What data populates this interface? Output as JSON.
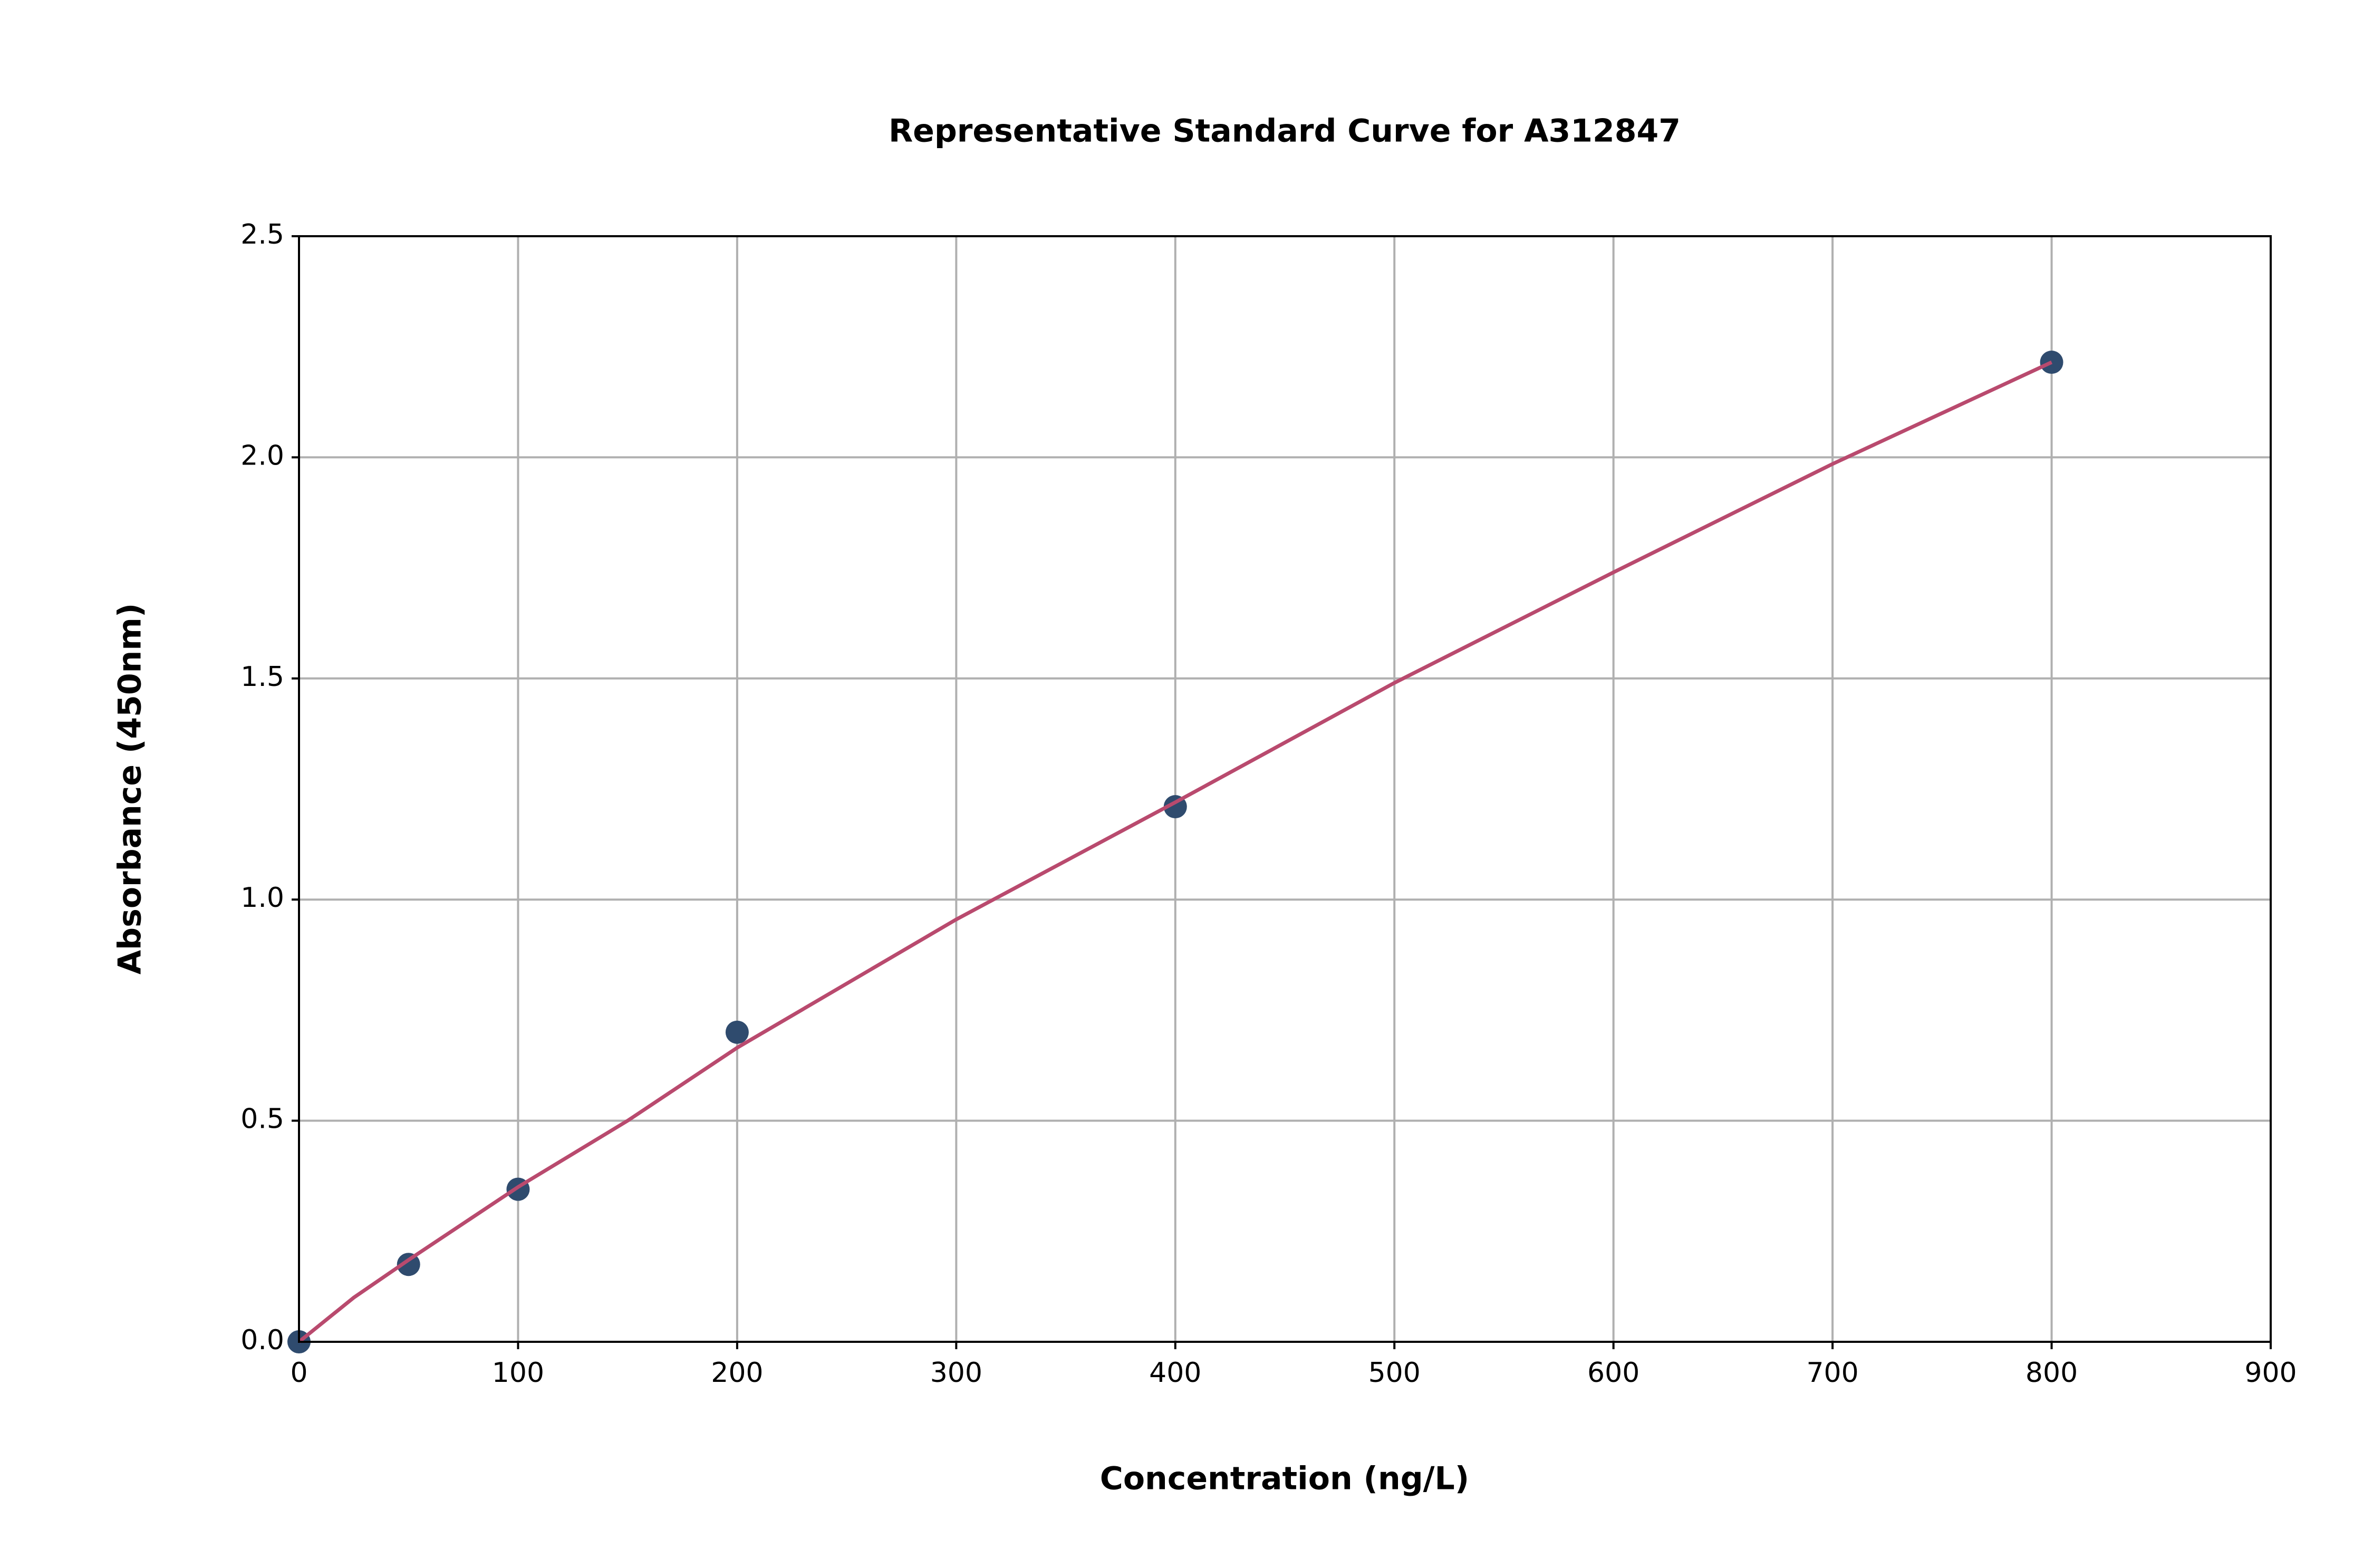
{
  "chart_data": {
    "type": "scatter",
    "title": "Representative Standard Curve for A312847",
    "x_label": "Concentration (ng/L)",
    "y_label": "Absorbance (450nm)",
    "x": [
      0,
      50,
      100,
      200,
      400,
      800
    ],
    "values": [
      0,
      0.175,
      0.345,
      0.7,
      1.21,
      2.215
    ],
    "color": "#2f4b6e",
    "fit": {
      "x": [
        0,
        25,
        50,
        100,
        150,
        200,
        300,
        400,
        500,
        600,
        700,
        800
      ],
      "values": [
        0,
        0.1,
        0.185,
        0.35,
        0.5,
        0.665,
        0.955,
        1.22,
        1.49,
        1.74,
        1.985,
        2.215
      ],
      "color": "#b94a6e"
    },
    "xlim": [
      0,
      900
    ],
    "xticks": [
      0,
      100,
      200,
      300,
      400,
      500,
      600,
      700,
      800,
      900
    ],
    "ylim": [
      0,
      2.5
    ],
    "yticks": [
      {
        "value": 0,
        "label": "0.0"
      },
      0.5,
      {
        "value": 1,
        "label": "1.0"
      },
      1.5,
      {
        "value": 2,
        "label": "2.0"
      },
      2.5
    ],
    "grid": true
  }
}
